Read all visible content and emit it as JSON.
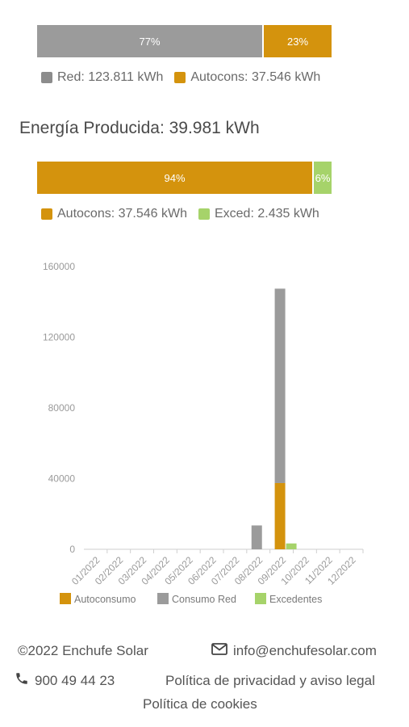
{
  "consumption": {
    "segments": [
      {
        "label": "77%",
        "fraction": 0.77,
        "color": "#9b9b9b"
      },
      {
        "label": "23%",
        "fraction": 0.23,
        "color": "#d4930d"
      }
    ],
    "legend": [
      {
        "text": "Red: 123.811 kWh",
        "color": "#8c8c8c"
      },
      {
        "text": "Autocons: 37.546 kWh",
        "color": "#d4930d"
      }
    ]
  },
  "production": {
    "title": "Energía Producida: 39.981 kWh",
    "segments": [
      {
        "label": "94%",
        "fraction": 0.94,
        "color": "#d4930d"
      },
      {
        "label": "6%",
        "fraction": 0.06,
        "color": "#a6d36a"
      }
    ],
    "legend": [
      {
        "text": "Autocons: 37.546 kWh",
        "color": "#d4930d"
      },
      {
        "text": "Exced: 2.435 kWh",
        "color": "#a6d36a"
      }
    ]
  },
  "chart_data": {
    "type": "bar",
    "stacked": true,
    "categories": [
      "01/2022",
      "02/2022",
      "03/2022",
      "04/2022",
      "05/2022",
      "06/2022",
      "07/2022",
      "08/2022",
      "09/2022",
      "10/2022",
      "11/2022",
      "12/2022"
    ],
    "yticks": [
      "160000",
      "120000",
      "80000",
      "40000",
      "0"
    ],
    "ylim": [
      0,
      160000
    ],
    "grid": false,
    "legend_position": "bottom",
    "series": [
      {
        "name": "Autoconsumo",
        "color": "#d4930d",
        "stack": "a",
        "values": [
          0,
          0,
          0,
          0,
          0,
          0,
          0,
          0,
          37500,
          0,
          0,
          0
        ]
      },
      {
        "name": "Consumo Red",
        "color": "#9b9b9b",
        "stack": "a",
        "values": [
          0,
          0,
          0,
          0,
          0,
          0,
          0,
          13500,
          110000,
          0,
          0,
          0
        ]
      },
      {
        "name": "Excedentes",
        "color": "#a6d36a",
        "stack": "b",
        "values": [
          0,
          0,
          0,
          0,
          0,
          0,
          0,
          0,
          2400,
          0,
          0,
          0
        ]
      }
    ]
  },
  "footer": {
    "copyright": "©2022 Enchufe Solar",
    "email": "info@enchufesolar.com",
    "phone": "900 49 44 23",
    "privacy": "Política de privacidad y aviso legal",
    "cookies": "Política de cookies",
    "icons": {
      "mail": "mail-icon",
      "phone": "phone-icon"
    }
  }
}
